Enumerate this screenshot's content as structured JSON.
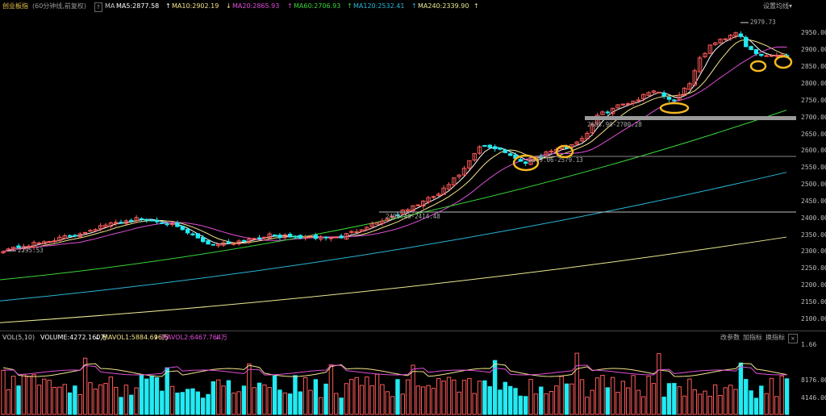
{
  "header": {
    "title": "创业板指",
    "subtitle": "(60分钟线,前复权)",
    "help_icon": "?",
    "ma_prefix": "MA",
    "ma_items": [
      {
        "label": "MA5:2877.58",
        "arrow": "↑",
        "color": "#ffffff"
      },
      {
        "label": "MA10:2902.19",
        "arrow": "↓",
        "color": "#f4e38b"
      },
      {
        "label": "MA20:2865.93",
        "arrow": "↑",
        "color": "#e04fd8"
      },
      {
        "label": "MA60:2706.93",
        "arrow": "↑",
        "color": "#38d638"
      },
      {
        "label": "MA120:2532.41",
        "arrow": "↑",
        "color": "#29b7d9"
      },
      {
        "label": "MA240:2339.90",
        "arrow": "↑",
        "color": "#eaea92"
      }
    ],
    "settings_label": "设置均线"
  },
  "volume_header": {
    "title": "VOL(5,10)",
    "volume": "VOLUME:4272.160万",
    "volume_arrow": "↓",
    "mavol1": "MAVOL1:5884.696万",
    "mavol1_arrow": "↓",
    "mavol2": "MAVOL2:6467.764万",
    "mavol2_arrow": "↓",
    "buttons": [
      "改参数",
      "加指标",
      "换指标"
    ],
    "close_icon": "×"
  },
  "price_axis": [
    "2950.00",
    "2900.00",
    "2850.00",
    "2800.00",
    "2750.00",
    "2700.00",
    "2650.00",
    "2600.00",
    "2550.00",
    "2500.00",
    "2450.00",
    "2400.00",
    "2350.00",
    "2300.00",
    "2250.00",
    "2200.00",
    "2150.00",
    "2100.00"
  ],
  "volume_axis": [
    "1.66",
    "8176.00",
    "4146.00"
  ],
  "annotations": {
    "high": "2979.73",
    "low": "2295.53",
    "level_2700": "2683.90-2700.28",
    "level_2580": "2549.06-2579.13",
    "level_2414": "2408.40-2414.48"
  },
  "colors": {
    "up": "#ff5a5a",
    "down": "#22eaf2",
    "highlight": "#f5b822"
  },
  "chart_data": {
    "type": "candlestick",
    "title": "创业板指",
    "y_range": [
      2075,
      2990
    ],
    "ma_lines": {
      "MA5": 2877.58,
      "MA10": 2902.19,
      "MA20": 2865.93,
      "MA60": 2706.93,
      "MA120": 2532.41,
      "MA240": 2339.9
    },
    "volume": {
      "last": "4272.160万",
      "mavol1": "5884.696万",
      "mavol2": "6467.764万"
    }
  }
}
